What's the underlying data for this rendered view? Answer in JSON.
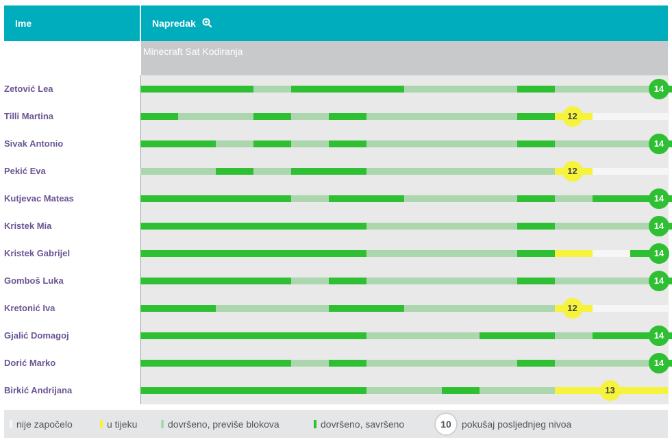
{
  "header": {
    "name_label": "Ime",
    "progress_label": "Napredak",
    "zoom_icon": "zoom-in-icon"
  },
  "stage_label": "Minecraft Sat Kodiranja",
  "colors": {
    "header": "#00adbc",
    "not_started": "#f6f6f6",
    "in_progress": "#f5f33b",
    "completed_too_many": "#acd6ad",
    "completed_perfect": "#2fbf33",
    "name_text": "#6b5594"
  },
  "students": [
    {
      "name": "Zetović Lea",
      "levels": "PPPTPPPTTTPTTTP",
      "last_level": "14"
    },
    {
      "name": "Tilli Martina",
      "levels": "PTTPTPTTTTPIN",
      "last_level": "12"
    },
    {
      "name": "Sivak Antonio",
      "levels": "PPTPTPTTTTPTTTP",
      "last_level": "14"
    },
    {
      "name": "Pekić Eva",
      "levels": "TTPTPPTTTTTIN",
      "last_level": "12"
    },
    {
      "name": "Kutjevac Mateas",
      "levels": "PPPPTPPTTTPTPPP",
      "last_level": "14"
    },
    {
      "name": "Kristek Mia",
      "levels": "PPPPPPTTTTPTTTP",
      "last_level": "14"
    },
    {
      "name": "Kristek Gabrijel",
      "levels": "PPPPPPTTTTPINP",
      "last_level": "14"
    },
    {
      "name": "Gomboš Luka",
      "levels": "PPPPTPTTTTPTTTP",
      "last_level": "14"
    },
    {
      "name": "Kretonić Iva",
      "levels": "PPTTTPPTTTTIN",
      "last_level": "12"
    },
    {
      "name": "Gjalić Domagoj",
      "levels": "PPPPPPTTTPPTPPP",
      "last_level": "14"
    },
    {
      "name": "Dorić Marko",
      "levels": "PPPPTPTTTTPTTTP",
      "last_level": "14"
    },
    {
      "name": "Birkić Andrijana",
      "levels": "PPPPPPTTPTTIII",
      "last_level": "13"
    }
  ],
  "legend": {
    "not_started": "nije započelo",
    "in_progress": "u tijeku",
    "completed_too_many": "dovršeno, previše blokova",
    "completed_perfect": "dovršeno, savršeno",
    "circle_value": "10",
    "last_level_attempt": "pokušaj posljednjeg nivoa"
  }
}
